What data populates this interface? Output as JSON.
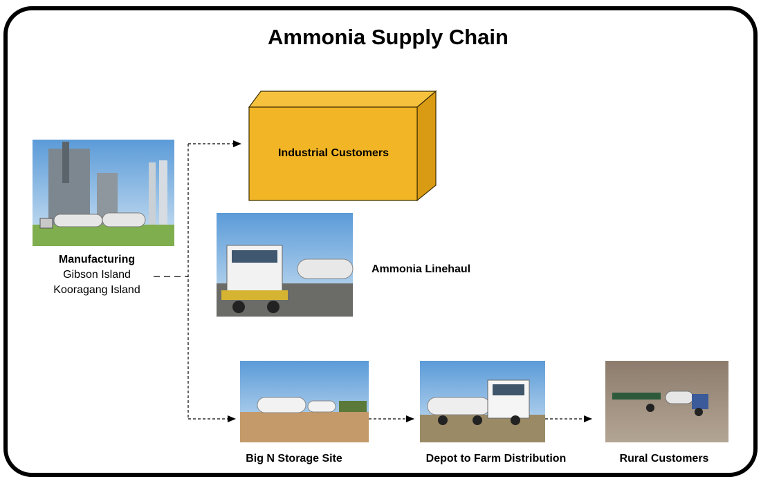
{
  "title": "Ammonia Supply Chain",
  "nodes": [
    {
      "label": "Manufacturing",
      "lines": [
        "Gibson Island",
        "Kooragang Island"
      ]
    },
    {
      "label": "Industrial Customers"
    },
    {
      "label": "Ammonia Linehaul"
    },
    {
      "label": "Big N Storage Site"
    },
    {
      "label": "Depot to Farm Distribution"
    },
    {
      "label": "Rural Customers"
    }
  ]
}
